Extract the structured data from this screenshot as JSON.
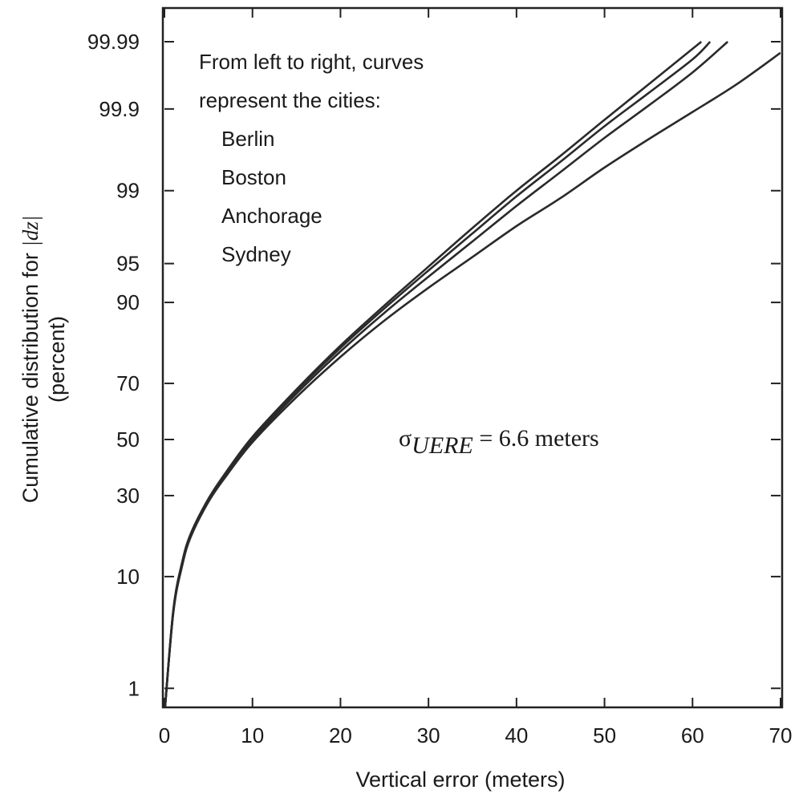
{
  "chart_data": {
    "type": "line",
    "title": "",
    "xlabel": "Vertical error (meters)",
    "ylabel": {
      "line1_prefix": "Cumulative distribution for ",
      "line1_var": "|dz|",
      "line2": "(percent)"
    },
    "xlim": [
      0,
      70
    ],
    "y_scale": "normal probability",
    "x_ticks": [
      0,
      10,
      20,
      30,
      40,
      50,
      60,
      70
    ],
    "y_ticks": [
      {
        "value": 1,
        "label": "1"
      },
      {
        "value": 10,
        "label": "10"
      },
      {
        "value": 30,
        "label": "30"
      },
      {
        "value": 50,
        "label": "50"
      },
      {
        "value": 70,
        "label": "70"
      },
      {
        "value": 90,
        "label": "90"
      },
      {
        "value": 95,
        "label": "95"
      },
      {
        "value": 99,
        "label": "99"
      },
      {
        "value": 99.9,
        "label": "99.9"
      },
      {
        "value": 99.99,
        "label": "99.99"
      }
    ],
    "grid": false,
    "line_color": "#2a2a2a",
    "annotations": {
      "legend_title_line1": "From left to right, curves",
      "legend_title_line2": "represent the cities:",
      "sigma_symbol": "σ",
      "sigma_subscript": "UERE",
      "sigma_value": " = 6.6 meters"
    },
    "series": [
      {
        "name": "Berlin",
        "x": [
          0,
          1,
          2,
          3,
          5,
          7,
          10,
          15,
          20,
          25,
          30,
          35,
          40,
          45,
          50,
          55,
          60,
          61
        ],
        "y": [
          0.5,
          5.5,
          12.5,
          19,
          29,
          38,
          51,
          68,
          81,
          89.5,
          94.7,
          97.6,
          99.0,
          99.6,
          99.86,
          99.955,
          99.987,
          99.99
        ]
      },
      {
        "name": "Boston",
        "x": [
          0,
          1,
          2,
          3,
          5,
          7,
          10,
          15,
          20,
          25,
          30,
          35,
          40,
          45,
          50,
          55,
          60,
          62
        ],
        "y": [
          0.5,
          5.4,
          12.3,
          18.8,
          28.8,
          37.7,
          50.5,
          67.5,
          80.4,
          89,
          94.3,
          97.3,
          98.85,
          99.53,
          99.83,
          99.94,
          99.981,
          99.99
        ]
      },
      {
        "name": "Anchorage",
        "x": [
          0,
          1,
          2,
          3,
          5,
          7,
          10,
          15,
          20,
          25,
          30,
          35,
          40,
          45,
          50,
          55,
          60,
          64
        ],
        "y": [
          0.5,
          5.3,
          12.0,
          18.5,
          28.4,
          37.2,
          49.8,
          66.6,
          79.5,
          88.2,
          93.6,
          96.8,
          98.55,
          99.38,
          99.76,
          99.91,
          99.97,
          99.99
        ]
      },
      {
        "name": "Sydney",
        "x": [
          0,
          1,
          2,
          3,
          5,
          7,
          10,
          15,
          20,
          25,
          30,
          35,
          40,
          45,
          50,
          55,
          60,
          65,
          70
        ],
        "y": [
          0.5,
          5.2,
          11.8,
          18.2,
          28.0,
          36.6,
          49.0,
          65.4,
          78.0,
          86.7,
          92.2,
          95.6,
          97.7,
          98.8,
          99.45,
          99.75,
          99.89,
          99.955,
          99.985
        ]
      }
    ]
  }
}
